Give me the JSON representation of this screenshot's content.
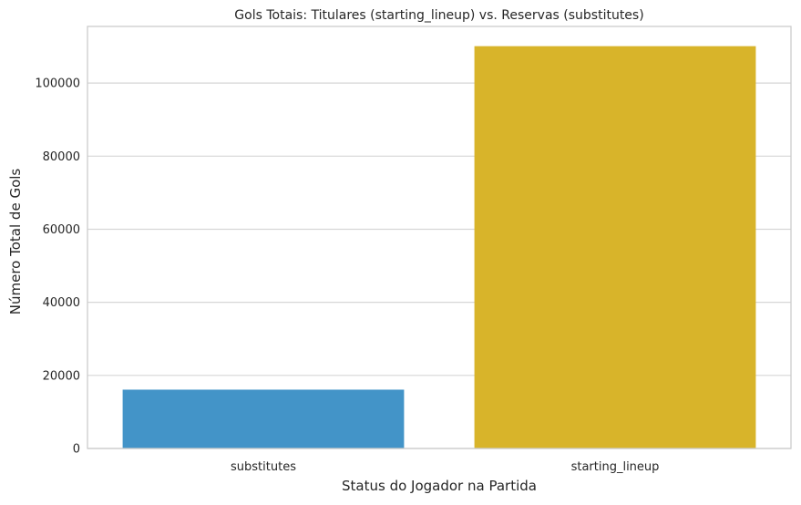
{
  "chart_data": {
    "type": "bar",
    "title": "Gols Totais: Titulares (starting_lineup) vs. Reservas (substitutes)",
    "xlabel": "Status do Jogador na Partida",
    "ylabel": "Número Total de Gols",
    "categories": [
      "substitutes",
      "starting_lineup"
    ],
    "values": [
      16100,
      110100
    ],
    "colors": [
      "#4394c8",
      "#d8b42a"
    ],
    "ylim": [
      0,
      115500
    ],
    "yticks": [
      0,
      20000,
      40000,
      60000,
      80000,
      100000
    ],
    "grid": true,
    "grid_axis": "y",
    "legend": false
  }
}
